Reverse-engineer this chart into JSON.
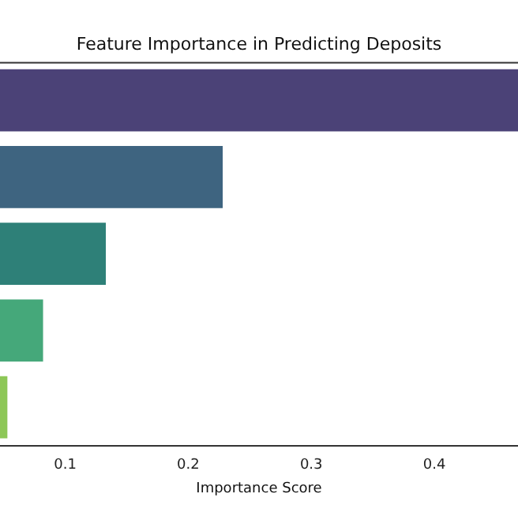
{
  "chart_data": {
    "type": "bar",
    "orientation": "horizontal",
    "title": "Feature Importance in Predicting Deposits",
    "xlabel": "Importance Score",
    "categories": [
      null,
      null,
      null,
      null,
      null
    ],
    "values": [
      0.468,
      0.228,
      0.133,
      0.082,
      0.053
    ],
    "colors": [
      "#4b4277",
      "#3e6480",
      "#2e8078",
      "#45a87a",
      "#8dc757"
    ],
    "xlim": [
      0.047,
      0.468
    ],
    "xticks": [
      0.1,
      0.2,
      0.3,
      0.4
    ],
    "grid": false,
    "legend": false
  }
}
